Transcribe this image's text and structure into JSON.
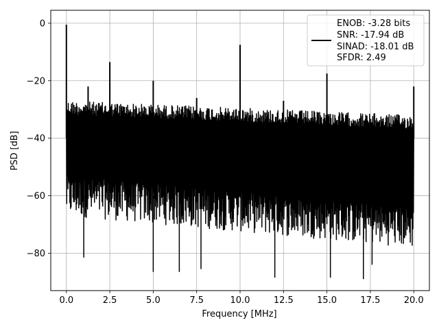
{
  "chart_data": {
    "type": "line",
    "xlabel": "Frequency [MHz]",
    "ylabel": "PSD [dB]",
    "xlim": [
      -0.9,
      20.9
    ],
    "ylim": [
      -93.0,
      4.5
    ],
    "x_ticks": [
      0,
      2.5,
      5,
      7.5,
      10,
      12.5,
      15,
      17.5,
      20
    ],
    "x_tick_labels": [
      "0.0",
      "2.5",
      "5.0",
      "7.5",
      "10.0",
      "12.5",
      "15.0",
      "17.5",
      "20.0"
    ],
    "y_ticks": [
      0,
      -20,
      -40,
      -60,
      -80
    ],
    "y_tick_labels": [
      "0",
      "−20",
      "−40",
      "−60",
      "−80"
    ],
    "grid": true,
    "legend_position": "upper-right",
    "series": [
      {
        "color": "#000000",
        "noise_floor_top_db": [
          -27,
          -32
        ],
        "noise_floor_bottom_db": [
          -65,
          -76
        ],
        "spikes": [
          {
            "x": 0.0,
            "y": -0.5
          },
          {
            "x": 1.25,
            "y": -22
          },
          {
            "x": 2.5,
            "y": -13.5
          },
          {
            "x": 5.0,
            "y": -20
          },
          {
            "x": 7.5,
            "y": -26
          },
          {
            "x": 10.0,
            "y": -7.5
          },
          {
            "x": 12.5,
            "y": -27
          },
          {
            "x": 15.0,
            "y": -17.5
          },
          {
            "x": 20.0,
            "y": -22
          }
        ],
        "dips": [
          {
            "x": 1.0,
            "y": -81.5
          },
          {
            "x": 5.0,
            "y": -86.5
          },
          {
            "x": 6.5,
            "y": -86.5
          },
          {
            "x": 7.75,
            "y": -85.5
          },
          {
            "x": 12.0,
            "y": -88.5
          },
          {
            "x": 15.2,
            "y": -88.5
          },
          {
            "x": 17.1,
            "y": -89.0
          },
          {
            "x": 17.6,
            "y": -84.0
          }
        ]
      }
    ],
    "legend_entries": [
      "ENOB: -3.28 bits",
      "SNR: -17.94 dB",
      "SINAD: -18.01 dB",
      "SFDR: 2.49"
    ]
  }
}
